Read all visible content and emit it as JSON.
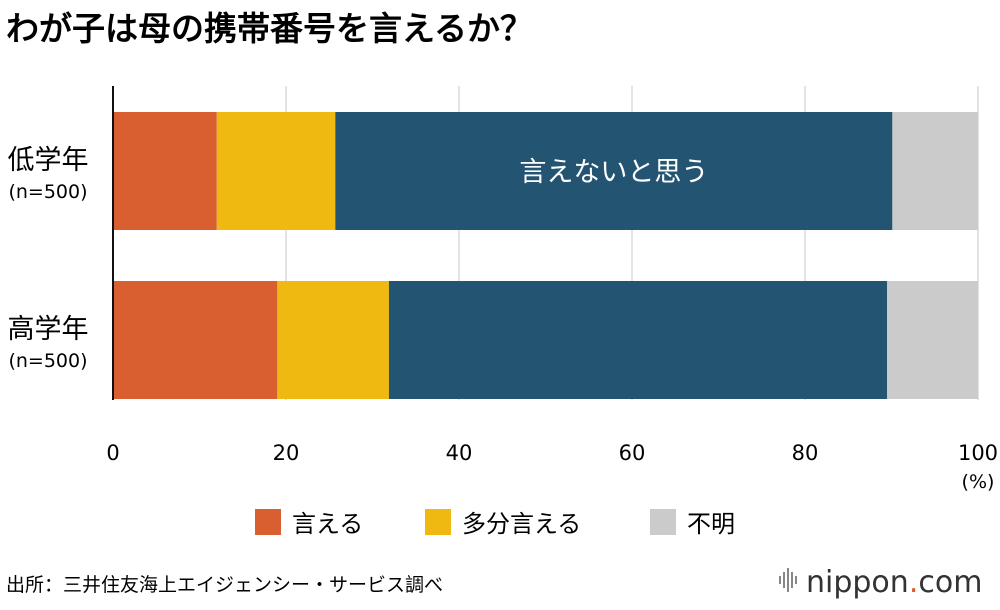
{
  "title": "わが子は母の携帯番号を言えるか？",
  "chart_data": {
    "type": "bar",
    "orientation": "horizontal",
    "stacked": true,
    "categories": [
      {
        "label": "低学年",
        "n": "(n=500)"
      },
      {
        "label": "高学年",
        "n": "(n=500)"
      }
    ],
    "series": [
      {
        "name": "言える",
        "color": "#d95f31",
        "values": [
          12,
          19
        ]
      },
      {
        "name": "多分言える",
        "color": "#f0b912",
        "values": [
          13.7,
          12.9
        ]
      },
      {
        "name": "言えないと思う",
        "color": "#235572",
        "values": [
          64.4,
          57.6
        ]
      },
      {
        "name": "不明",
        "color": "#cbcbcb",
        "values": [
          9.9,
          10.5
        ]
      }
    ],
    "inline_label": {
      "text": "言えないと思う",
      "category_index": 0,
      "series_index": 2
    },
    "xlim": [
      0,
      100
    ],
    "xticks": [
      "0",
      "20",
      "40",
      "60",
      "80",
      "100"
    ],
    "xunit": "(%)",
    "grid": true,
    "legend": {
      "position": "bottom",
      "items": [
        {
          "label": "言える",
          "color": "#d95f31"
        },
        {
          "label": "多分言える",
          "color": "#f0b912"
        },
        {
          "label": "不明",
          "color": "#cbcbcb"
        }
      ]
    }
  },
  "source": "出所：三井住友海上エイジェンシー・サービス調べ",
  "brand": {
    "name": "nippon",
    "dot": ".",
    "tld": "com"
  }
}
